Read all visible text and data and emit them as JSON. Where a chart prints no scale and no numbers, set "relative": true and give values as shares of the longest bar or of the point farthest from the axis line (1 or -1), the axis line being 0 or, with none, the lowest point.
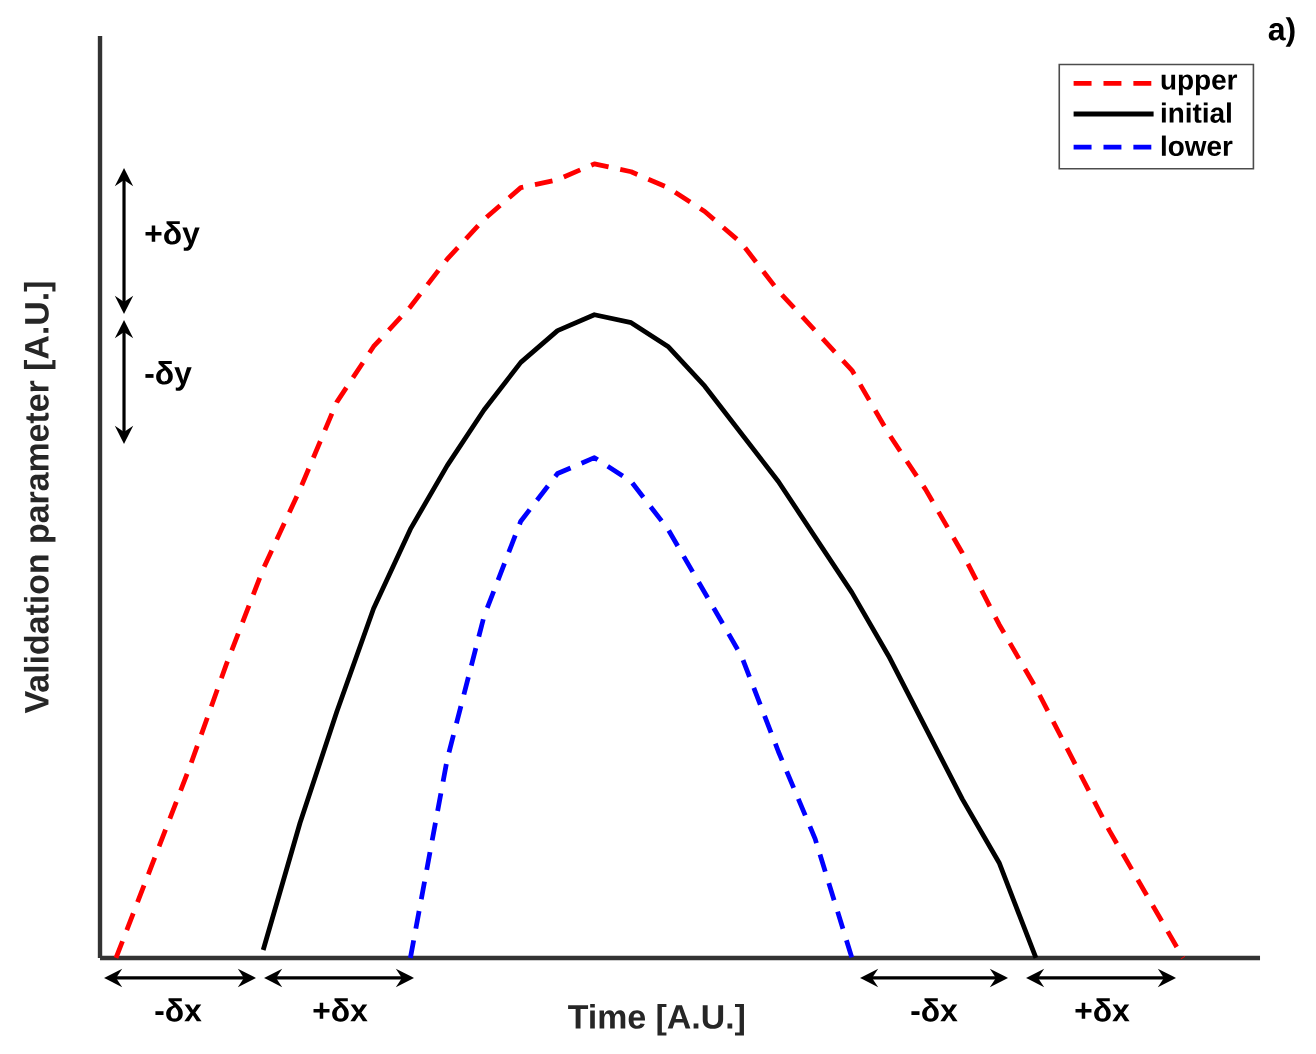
{
  "chart_data": {
    "type": "line",
    "relative": true,
    "xlabel": "Time [A.U.]",
    "ylabel": "Validation parameter [A.U.]",
    "categories": [
      null,
      null,
      null,
      null,
      null,
      null,
      null,
      null,
      null,
      null,
      null,
      null,
      null,
      null,
      null,
      null,
      null,
      null,
      null,
      null,
      null,
      null,
      null,
      null,
      null,
      null,
      null,
      null,
      null,
      null
    ],
    "series": [
      {
        "name": "upper",
        "color": "#ff0000",
        "line_style": "dashed",
        "values": [
          0,
          0.12,
          0.24,
          0.37,
          0.49,
          0.59,
          0.7,
          0.77,
          0.82,
          0.88,
          0.93,
          0.97,
          0.98,
          1,
          0.99,
          0.97,
          0.94,
          0.9,
          0.84,
          0.79,
          0.74,
          0.66,
          0.59,
          0.51,
          0.42,
          0.34,
          0.25,
          0.16,
          0.08,
          0
        ]
      },
      {
        "name": "initial",
        "color": "#000000",
        "line_style": "solid",
        "values": [
          null,
          null,
          null,
          null,
          0.01,
          0.17,
          0.31,
          0.44,
          0.54,
          0.62,
          0.69,
          0.75,
          0.79,
          0.81,
          0.8,
          0.77,
          0.72,
          0.66,
          0.6,
          0.53,
          0.46,
          0.38,
          0.29,
          0.2,
          0.12,
          0,
          null,
          null,
          null,
          null
        ]
      },
      {
        "name": "lower",
        "color": "#0000ff",
        "line_style": "dashed",
        "values": [
          null,
          null,
          null,
          null,
          null,
          null,
          null,
          null,
          0,
          0.25,
          0.43,
          0.55,
          0.61,
          0.63,
          0.6,
          0.54,
          0.46,
          0.38,
          0.26,
          0.15,
          0,
          null,
          null,
          null,
          null,
          null,
          null,
          null,
          null,
          null
        ]
      }
    ],
    "legend": "top right",
    "marker": "none",
    "grid": false,
    "annotations": [
      "+δy",
      "-δy",
      "-δx",
      "+δx",
      "-δx",
      "+δx",
      "a)"
    ]
  }
}
